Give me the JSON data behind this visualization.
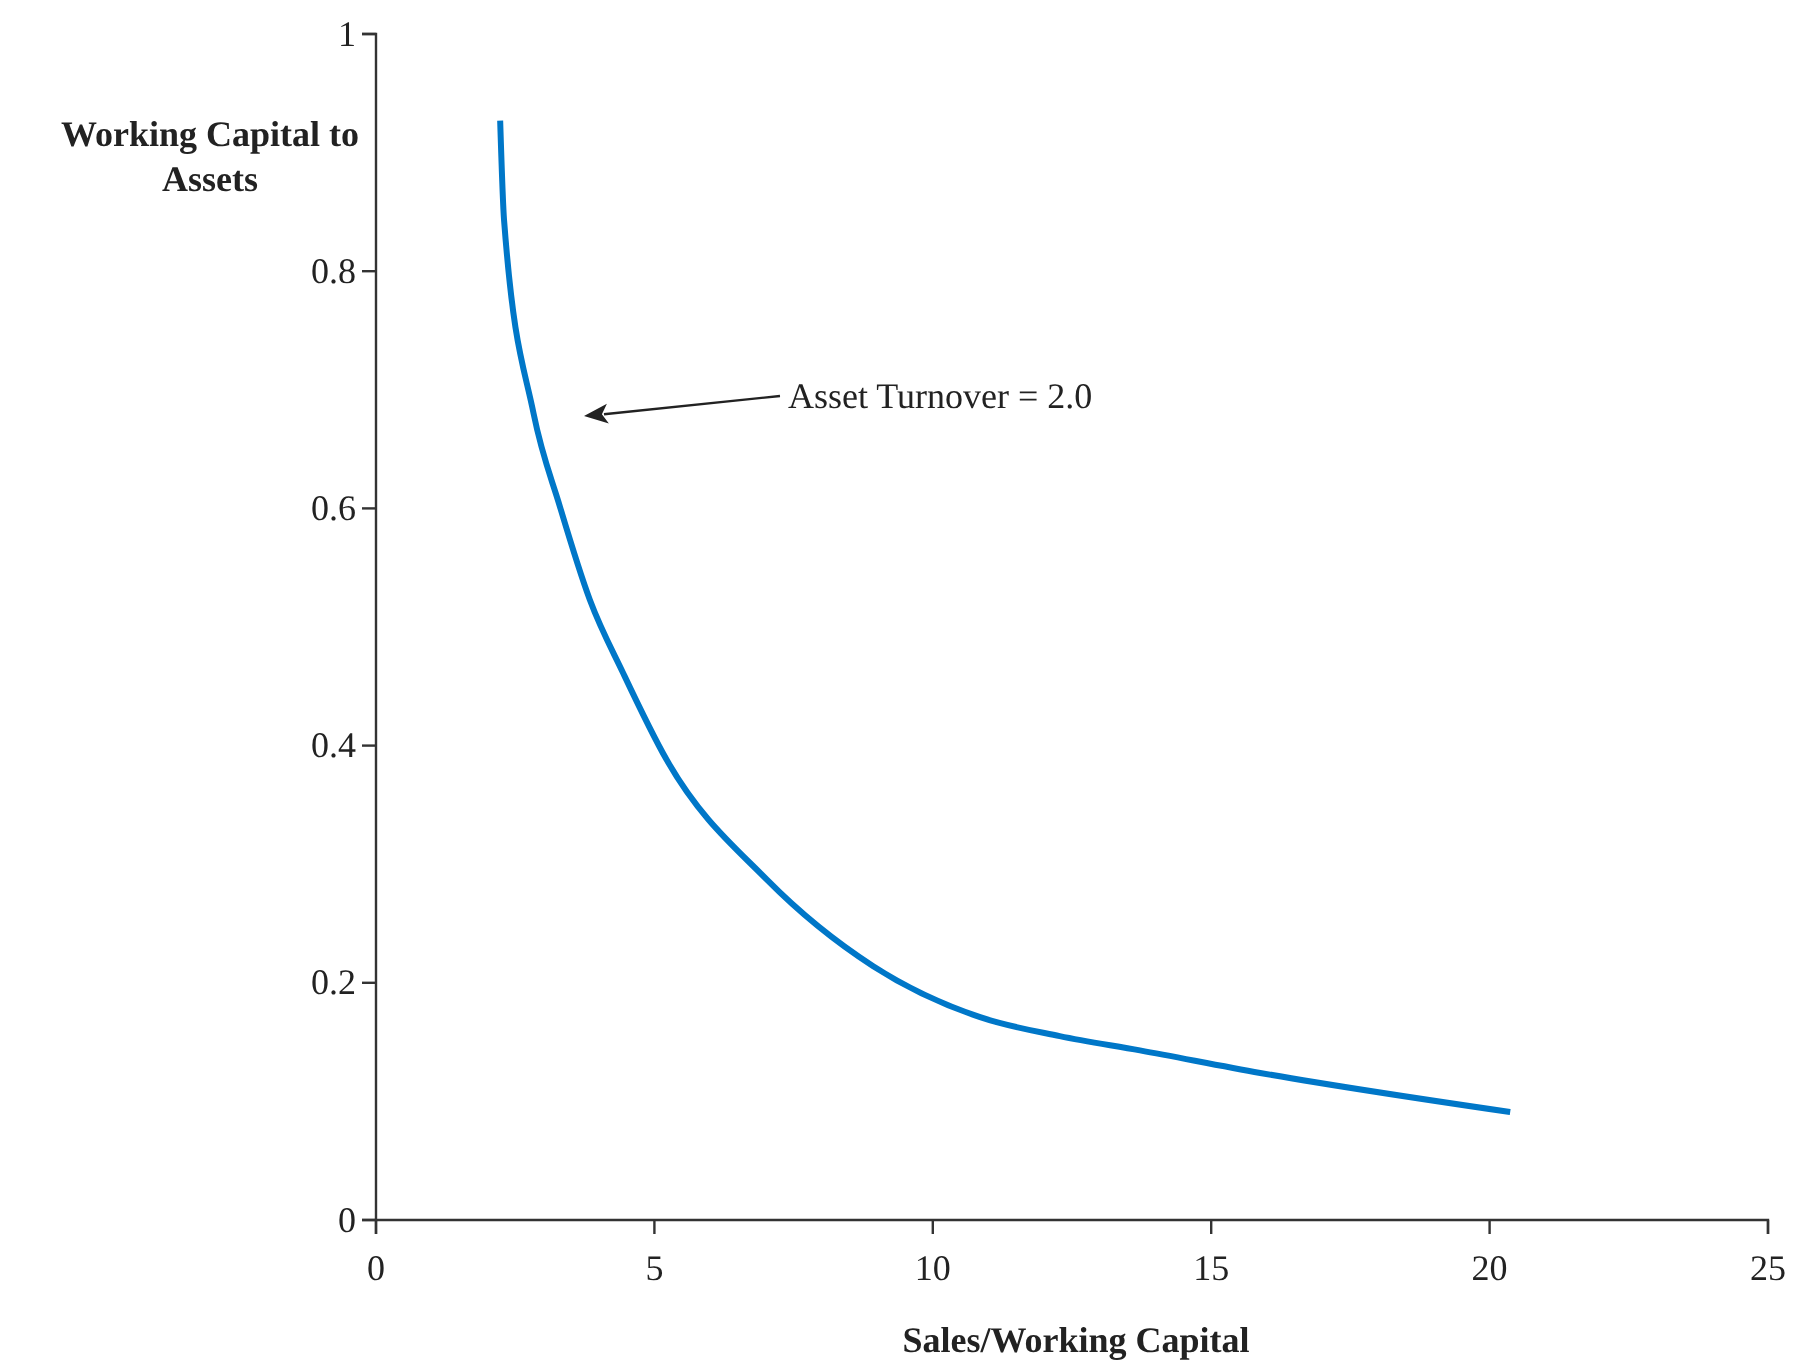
{
  "chart_data": {
    "type": "line",
    "xlabel": "Sales/Working Capital",
    "ylabel": "Working Capital to Assets",
    "x": [
      2.23,
      2.3,
      2.83,
      3.3,
      3.84,
      4.44,
      5.22,
      7.02,
      8.93,
      10.85,
      12.28,
      13.72,
      15.88,
      20.37
    ],
    "series": [
      {
        "color": "#0077c8",
        "values": [
          0.927,
          0.843,
          0.68,
          0.602,
          0.523,
          0.461,
          0.388,
          0.287,
          0.214,
          0.171,
          0.155,
          0.143,
          0.124,
          0.091
        ]
      }
    ],
    "xlim": [
      0,
      25
    ],
    "ylim": [
      0,
      1
    ],
    "xticks": [
      0,
      5,
      10,
      15,
      20,
      25
    ],
    "yticks": [
      0,
      0.2,
      0.4,
      0.6,
      0.8,
      1
    ],
    "marker": "none",
    "line_style": "solid",
    "annotations": [
      "Asset Turnover = 2.0"
    ]
  }
}
